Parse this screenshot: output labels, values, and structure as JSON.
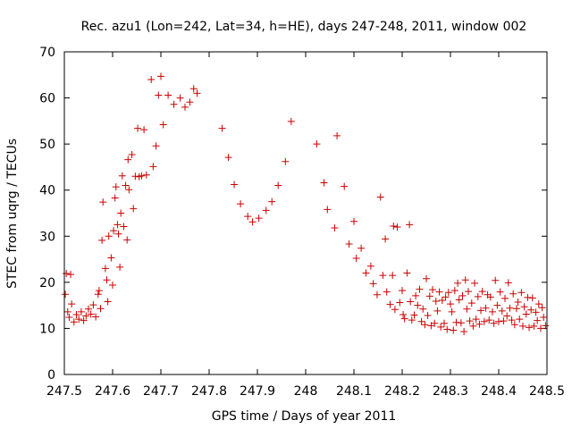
{
  "chart_data": {
    "type": "scatter",
    "title": "Rec. azu1 (Lon=242, Lat=34, h=HE), days 247-248, 2011, window 002",
    "xlabel": "GPS time / Days of year 2011",
    "ylabel": "STEC from uqrg / TECUs",
    "xlim": [
      247.5,
      248.5
    ],
    "ylim": [
      0,
      70
    ],
    "xticks": [
      247.5,
      247.6,
      247.7,
      247.8,
      247.9,
      248.0,
      248.1,
      248.2,
      248.3,
      248.4,
      248.5
    ],
    "xtick_labels": [
      "247.5",
      "247.6",
      "247.7",
      "247.8",
      "247.9",
      "248",
      "248.1",
      "248.2",
      "248.3",
      "248.4",
      "248.5"
    ],
    "yticks": [
      0,
      10,
      20,
      30,
      40,
      50,
      60,
      70
    ],
    "ytick_labels": [
      "0",
      "10",
      "20",
      "30",
      "40",
      "50",
      "60",
      "70"
    ],
    "marker": "+",
    "marker_color": "#cc0000",
    "grid": false,
    "points": [
      [
        247.502,
        17.4
      ],
      [
        247.504,
        21.9
      ],
      [
        247.507,
        13.6
      ],
      [
        247.51,
        12.4
      ],
      [
        247.513,
        21.7
      ],
      [
        247.515,
        15.3
      ],
      [
        247.52,
        11.4
      ],
      [
        247.525,
        13.0
      ],
      [
        247.53,
        12.0
      ],
      [
        247.535,
        13.6
      ],
      [
        247.54,
        11.7
      ],
      [
        247.545,
        12.7
      ],
      [
        247.55,
        14.2
      ],
      [
        247.555,
        13.1
      ],
      [
        247.56,
        15.1
      ],
      [
        247.565,
        12.5
      ],
      [
        247.57,
        17.4
      ],
      [
        247.572,
        18.2
      ],
      [
        247.575,
        14.3
      ],
      [
        247.578,
        29.1
      ],
      [
        247.58,
        37.4
      ],
      [
        247.585,
        23.0
      ],
      [
        247.588,
        20.5
      ],
      [
        247.59,
        15.8
      ],
      [
        247.592,
        30.0
      ],
      [
        247.597,
        25.3
      ],
      [
        247.6,
        19.4
      ],
      [
        247.602,
        31.2
      ],
      [
        247.605,
        38.3
      ],
      [
        247.607,
        40.7
      ],
      [
        247.61,
        32.5
      ],
      [
        247.612,
        30.5
      ],
      [
        247.615,
        23.3
      ],
      [
        247.617,
        35.0
      ],
      [
        247.62,
        43.1
      ],
      [
        247.623,
        32.1
      ],
      [
        247.627,
        41.0
      ],
      [
        247.63,
        29.2
      ],
      [
        247.632,
        46.6
      ],
      [
        247.634,
        40.1
      ],
      [
        247.64,
        47.7
      ],
      [
        247.643,
        36.0
      ],
      [
        247.647,
        43.0
      ],
      [
        247.652,
        53.4
      ],
      [
        247.655,
        42.9
      ],
      [
        247.66,
        43.1
      ],
      [
        247.665,
        53.1
      ],
      [
        247.67,
        43.3
      ],
      [
        247.68,
        64.0
      ],
      [
        247.684,
        45.1
      ],
      [
        247.69,
        49.6
      ],
      [
        247.695,
        60.6
      ],
      [
        247.7,
        64.7
      ],
      [
        247.705,
        54.2
      ],
      [
        247.715,
        60.6
      ],
      [
        247.727,
        58.6
      ],
      [
        247.74,
        60.0
      ],
      [
        247.75,
        58.0
      ],
      [
        247.76,
        59.1
      ],
      [
        247.768,
        62.0
      ],
      [
        247.775,
        61.0
      ],
      [
        247.827,
        53.4
      ],
      [
        247.84,
        47.1
      ],
      [
        247.852,
        41.2
      ],
      [
        247.865,
        37.0
      ],
      [
        247.88,
        34.3
      ],
      [
        247.89,
        33.1
      ],
      [
        247.903,
        33.9
      ],
      [
        247.918,
        35.6
      ],
      [
        247.93,
        37.5
      ],
      [
        247.943,
        41.0
      ],
      [
        247.958,
        46.2
      ],
      [
        247.97,
        54.9
      ],
      [
        248.023,
        50.0
      ],
      [
        248.038,
        41.6
      ],
      [
        248.045,
        35.8
      ],
      [
        248.06,
        31.8
      ],
      [
        248.065,
        51.8
      ],
      [
        248.08,
        40.8
      ],
      [
        248.09,
        28.3
      ],
      [
        248.1,
        33.2
      ],
      [
        248.105,
        25.2
      ],
      [
        248.115,
        27.4
      ],
      [
        248.125,
        22.0
      ],
      [
        248.135,
        23.5
      ],
      [
        248.14,
        19.7
      ],
      [
        248.148,
        17.3
      ],
      [
        248.155,
        38.5
      ],
      [
        248.16,
        21.5
      ],
      [
        248.165,
        29.4
      ],
      [
        248.168,
        17.9
      ],
      [
        248.175,
        15.2
      ],
      [
        248.18,
        21.5
      ],
      [
        248.182,
        32.2
      ],
      [
        248.185,
        14.1
      ],
      [
        248.19,
        32.0
      ],
      [
        248.195,
        15.6
      ],
      [
        248.2,
        18.2
      ],
      [
        248.202,
        13.0
      ],
      [
        248.205,
        12.1
      ],
      [
        248.21,
        22.0
      ],
      [
        248.215,
        32.5
      ],
      [
        248.217,
        15.8
      ],
      [
        248.22,
        11.8
      ],
      [
        248.225,
        12.9
      ],
      [
        248.228,
        17.1
      ],
      [
        248.232,
        15.0
      ],
      [
        248.236,
        18.5
      ],
      [
        248.24,
        11.5
      ],
      [
        248.243,
        14.2
      ],
      [
        248.247,
        10.8
      ],
      [
        248.25,
        20.8
      ],
      [
        248.253,
        12.8
      ],
      [
        248.257,
        17.0
      ],
      [
        248.26,
        10.6
      ],
      [
        248.263,
        18.4
      ],
      [
        248.267,
        11.1
      ],
      [
        248.27,
        15.9
      ],
      [
        248.273,
        13.8
      ],
      [
        248.277,
        17.9
      ],
      [
        248.28,
        10.3
      ],
      [
        248.283,
        16.1
      ],
      [
        248.287,
        11.1
      ],
      [
        248.29,
        16.8
      ],
      [
        248.293,
        9.8
      ],
      [
        248.296,
        17.8
      ],
      [
        248.3,
        15.3
      ],
      [
        248.303,
        13.6
      ],
      [
        248.306,
        9.6
      ],
      [
        248.309,
        18.2
      ],
      [
        248.312,
        11.3
      ],
      [
        248.315,
        19.8
      ],
      [
        248.318,
        16.2
      ],
      [
        248.322,
        11.2
      ],
      [
        248.325,
        17.1
      ],
      [
        248.328,
        9.3
      ],
      [
        248.331,
        20.5
      ],
      [
        248.334,
        14.2
      ],
      [
        248.337,
        18.0
      ],
      [
        248.34,
        11.6
      ],
      [
        248.344,
        15.5
      ],
      [
        248.347,
        10.5
      ],
      [
        248.35,
        19.8
      ],
      [
        248.353,
        12.0
      ],
      [
        248.357,
        16.9
      ],
      [
        248.36,
        10.9
      ],
      [
        248.363,
        13.9
      ],
      [
        248.366,
        18.0
      ],
      [
        248.37,
        11.5
      ],
      [
        248.373,
        14.4
      ],
      [
        248.377,
        17.3
      ],
      [
        248.38,
        11.8
      ],
      [
        248.383,
        16.8
      ],
      [
        248.387,
        13.6
      ],
      [
        248.39,
        11.1
      ],
      [
        248.393,
        20.4
      ],
      [
        248.397,
        15.0
      ],
      [
        248.4,
        11.5
      ],
      [
        248.403,
        17.9
      ],
      [
        248.407,
        13.8
      ],
      [
        248.41,
        11.6
      ],
      [
        248.413,
        16.5
      ],
      [
        248.417,
        12.7
      ],
      [
        248.42,
        19.9
      ],
      [
        248.423,
        14.4
      ],
      [
        248.427,
        11.8
      ],
      [
        248.43,
        17.5
      ],
      [
        248.433,
        10.8
      ],
      [
        248.437,
        14.3
      ],
      [
        248.44,
        15.7
      ],
      [
        248.443,
        12.0
      ],
      [
        248.447,
        17.8
      ],
      [
        248.45,
        10.5
      ],
      [
        248.453,
        14.7
      ],
      [
        248.457,
        13.1
      ],
      [
        248.46,
        16.7
      ],
      [
        248.463,
        10.2
      ],
      [
        248.467,
        14.0
      ],
      [
        248.47,
        16.6
      ],
      [
        248.473,
        10.5
      ],
      [
        248.477,
        13.5
      ],
      [
        248.48,
        11.7
      ],
      [
        248.483,
        15.3
      ],
      [
        248.487,
        10.0
      ],
      [
        248.49,
        14.5
      ],
      [
        248.493,
        12.4
      ],
      [
        248.497,
        10.6
      ]
    ]
  }
}
